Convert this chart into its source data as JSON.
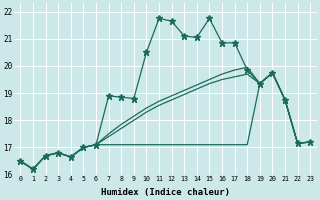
{
  "xlabel": "Humidex (Indice chaleur)",
  "bg_color": "#cde8e8",
  "grid_color": "#ffffff",
  "line_color": "#1a6b5a",
  "xlim": [
    -0.5,
    23.5
  ],
  "ylim": [
    16,
    22.3
  ],
  "xticks": [
    0,
    1,
    2,
    3,
    4,
    5,
    6,
    7,
    8,
    9,
    10,
    11,
    12,
    13,
    14,
    15,
    16,
    17,
    18,
    19,
    20,
    21,
    22,
    23
  ],
  "yticks": [
    16,
    17,
    18,
    19,
    20,
    21,
    22
  ],
  "series": [
    {
      "x": [
        0,
        1,
        2,
        3,
        4,
        5,
        6,
        7,
        8,
        9,
        10,
        11,
        12,
        13,
        14,
        15,
        16,
        17,
        18,
        19,
        20,
        21,
        22,
        23
      ],
      "y": [
        16.5,
        16.2,
        16.7,
        16.8,
        16.65,
        17.0,
        17.1,
        18.9,
        18.85,
        18.8,
        20.5,
        21.75,
        21.65,
        21.1,
        21.05,
        21.75,
        20.85,
        20.85,
        19.85,
        19.35,
        19.75,
        18.75,
        17.15,
        17.2
      ],
      "marker": "*",
      "markersize": 4.5,
      "linewidth": 0.9
    },
    {
      "x": [
        0,
        1,
        2,
        3,
        4,
        5,
        6,
        18,
        19,
        20,
        21,
        22,
        23
      ],
      "y": [
        16.5,
        16.2,
        16.7,
        16.8,
        16.65,
        17.0,
        17.1,
        17.1,
        19.35,
        19.75,
        18.75,
        17.15,
        17.2
      ],
      "marker": null,
      "markersize": 0,
      "linewidth": 0.9
    },
    {
      "x": [
        0,
        1,
        2,
        3,
        4,
        5,
        6,
        7,
        8,
        9,
        10,
        11,
        12,
        13,
        14,
        15,
        16,
        17,
        18,
        19,
        20,
        21,
        22,
        23
      ],
      "y": [
        16.5,
        16.2,
        16.7,
        16.8,
        16.65,
        17.0,
        17.1,
        17.4,
        17.7,
        18.0,
        18.3,
        18.55,
        18.75,
        18.95,
        19.15,
        19.35,
        19.5,
        19.6,
        19.7,
        19.35,
        19.75,
        18.75,
        17.15,
        17.2
      ],
      "marker": null,
      "markersize": 0,
      "linewidth": 0.9
    },
    {
      "x": [
        0,
        1,
        2,
        3,
        4,
        5,
        6,
        7,
        8,
        9,
        10,
        11,
        12,
        13,
        14,
        15,
        16,
        17,
        18,
        19,
        20,
        21,
        22,
        23
      ],
      "y": [
        16.5,
        16.2,
        16.7,
        16.8,
        16.65,
        17.0,
        17.1,
        17.5,
        17.85,
        18.15,
        18.45,
        18.7,
        18.9,
        19.1,
        19.3,
        19.5,
        19.7,
        19.85,
        19.95,
        19.35,
        19.75,
        18.75,
        17.15,
        17.2
      ],
      "marker": null,
      "markersize": 0,
      "linewidth": 0.9
    }
  ]
}
